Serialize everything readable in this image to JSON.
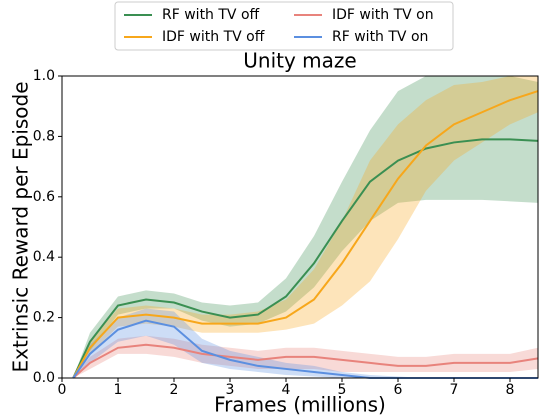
{
  "chart_data": {
    "type": "line",
    "title": "Unity maze",
    "xlabel": "Frames (millions)",
    "ylabel": "Extrinsic Reward per Episode",
    "x": [
      0.2,
      0.5,
      1,
      1.5,
      2,
      2.5,
      3,
      3.5,
      4,
      4.5,
      5,
      5.5,
      6,
      6.5,
      7,
      7.5,
      8,
      8.5
    ],
    "series": [
      {
        "name": "RF with TV off",
        "color": "#3a8f52",
        "values": [
          0,
          0.12,
          0.24,
          0.26,
          0.25,
          0.22,
          0.2,
          0.21,
          0.27,
          0.38,
          0.52,
          0.65,
          0.72,
          0.76,
          0.78,
          0.79,
          0.79,
          0.785
        ],
        "lower": [
          0,
          0.09,
          0.21,
          0.23,
          0.23,
          0.19,
          0.17,
          0.18,
          0.22,
          0.3,
          0.42,
          0.52,
          0.58,
          0.59,
          0.59,
          0.59,
          0.585,
          0.58
        ],
        "upper": [
          0,
          0.15,
          0.27,
          0.29,
          0.28,
          0.25,
          0.24,
          0.25,
          0.33,
          0.47,
          0.65,
          0.82,
          0.95,
          1.0,
          1.0,
          1.0,
          1.0,
          0.98
        ]
      },
      {
        "name": "IDF with TV off",
        "color": "#f7a71b",
        "values": [
          0,
          0.1,
          0.2,
          0.21,
          0.2,
          0.18,
          0.18,
          0.18,
          0.2,
          0.26,
          0.38,
          0.52,
          0.66,
          0.77,
          0.84,
          0.88,
          0.92,
          0.95
        ],
        "lower": [
          0,
          0.08,
          0.17,
          0.18,
          0.17,
          0.15,
          0.15,
          0.15,
          0.16,
          0.18,
          0.24,
          0.32,
          0.46,
          0.62,
          0.72,
          0.78,
          0.84,
          0.88
        ],
        "upper": [
          0,
          0.12,
          0.23,
          0.24,
          0.23,
          0.21,
          0.21,
          0.22,
          0.26,
          0.36,
          0.52,
          0.72,
          0.84,
          0.92,
          0.97,
          0.98,
          1.0,
          1.0
        ]
      },
      {
        "name": "IDF with TV on",
        "color": "#e8837c",
        "values": [
          0,
          0.05,
          0.1,
          0.11,
          0.1,
          0.08,
          0.07,
          0.06,
          0.07,
          0.07,
          0.06,
          0.05,
          0.04,
          0.04,
          0.05,
          0.05,
          0.05,
          0.065
        ],
        "lower": [
          0,
          0.03,
          0.08,
          0.08,
          0.07,
          0.05,
          0.04,
          0.03,
          0.03,
          0.03,
          0.02,
          0.02,
          0.02,
          0.02,
          0.02,
          0.02,
          0.02,
          0.03
        ],
        "upper": [
          0,
          0.07,
          0.13,
          0.14,
          0.13,
          0.11,
          0.1,
          0.09,
          0.1,
          0.1,
          0.09,
          0.08,
          0.07,
          0.07,
          0.08,
          0.08,
          0.08,
          0.1
        ]
      },
      {
        "name": "RF with TV on",
        "color": "#5b8fe0",
        "values": [
          0,
          0.08,
          0.16,
          0.19,
          0.17,
          0.09,
          0.06,
          0.04,
          0.03,
          0.02,
          0.01,
          0,
          0,
          0,
          0,
          0,
          0,
          0
        ],
        "lower": [
          0,
          0.05,
          0.12,
          0.14,
          0.11,
          0.05,
          0.03,
          0.02,
          0.01,
          0.005,
          0,
          0,
          0,
          0,
          0,
          0,
          0,
          0
        ],
        "upper": [
          0,
          0.11,
          0.2,
          0.23,
          0.22,
          0.13,
          0.09,
          0.07,
          0.05,
          0.04,
          0.02,
          0.01,
          0.005,
          0,
          0,
          0,
          0,
          0
        ]
      }
    ],
    "xlim": [
      0,
      8.5
    ],
    "xticks": [
      0,
      1,
      2,
      3,
      4,
      5,
      6,
      7,
      8
    ],
    "ylim": [
      0,
      1
    ],
    "yticks": [
      {
        "value": 0,
        "label": "0.0"
      },
      {
        "value": 0.2,
        "label": "0.2"
      },
      {
        "value": 0.4,
        "label": "0.4"
      },
      {
        "value": 0.6,
        "label": "0.6"
      },
      {
        "value": 0.8,
        "label": "0.8"
      },
      {
        "value": 1,
        "label": "1.0"
      }
    ],
    "legend": "top"
  }
}
